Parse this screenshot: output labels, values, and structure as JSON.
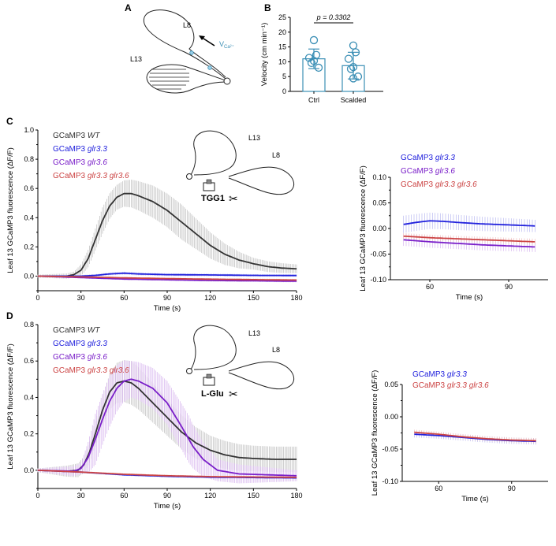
{
  "colors": {
    "wt": "#333333",
    "g33": "#2222dd",
    "g36": "#7a1fc9",
    "g3336": "#cc4444",
    "bar": "#3b8fb5",
    "wtShade": "#bdbdbd",
    "g33Shade": "#b9b9f0",
    "g36Shade": "#d6b3ee",
    "g3336Shade": "#efc0c0"
  },
  "panels": {
    "A": "A",
    "B": "B",
    "C": "C",
    "D": "D"
  },
  "schematic_A": {
    "leaf_top": "L8",
    "leaf_bottom": "L13",
    "velocity_label": "V",
    "velocity_sub": "Ca²⁺"
  },
  "chart_data": [
    {
      "id": "B",
      "type": "bar",
      "categories": [
        "Ctrl",
        "Scalded"
      ],
      "values": [
        11.0,
        8.7
      ],
      "sd": [
        3.3,
        4.5
      ],
      "points": [
        [
          17.3,
          12.3,
          11.3,
          10.3,
          9.6,
          8.0
        ],
        [
          15.5,
          13.2,
          11.0,
          8.2,
          7.6,
          5.0,
          4.4
        ]
      ],
      "ylabel": "Velocity (cm min⁻¹)",
      "ylim": [
        0,
        25
      ],
      "yticks": [
        0,
        5,
        10,
        15,
        20,
        25
      ],
      "pvalue": "p = 0.3302"
    },
    {
      "id": "C_main",
      "type": "line",
      "xlabel": "Time (s)",
      "ylabel": "Leaf 13 GCaMP3 fluorescence (ΔF/F)",
      "xlim": [
        0,
        180
      ],
      "xticks": [
        0,
        30,
        60,
        90,
        120,
        150,
        180
      ],
      "ylim": [
        -0.1,
        1.0
      ],
      "yticks": [
        "0.0",
        "0.2",
        "0.4",
        "0.6",
        "0.8",
        "1.0"
      ],
      "treatment": "TGG1",
      "schematic_leaves": [
        "L13",
        "L8"
      ],
      "legend": [
        "GCaMP3 WT",
        "GCaMP3 glr3.3",
        "GCaMP3 glr3.6",
        "GCaMP3 glr3.3 glr3.6"
      ],
      "series": [
        {
          "name": "GCaMP3 WT",
          "key": "wt",
          "points": [
            [
              0,
              0
            ],
            [
              10,
              0
            ],
            [
              20,
              0
            ],
            [
              25,
              0.01
            ],
            [
              30,
              0.04
            ],
            [
              35,
              0.12
            ],
            [
              40,
              0.25
            ],
            [
              45,
              0.38
            ],
            [
              50,
              0.48
            ],
            [
              55,
              0.54
            ],
            [
              60,
              0.565
            ],
            [
              65,
              0.565
            ],
            [
              70,
              0.55
            ],
            [
              80,
              0.51
            ],
            [
              90,
              0.45
            ],
            [
              100,
              0.37
            ],
            [
              110,
              0.29
            ],
            [
              120,
              0.21
            ],
            [
              130,
              0.15
            ],
            [
              140,
              0.11
            ],
            [
              150,
              0.085
            ],
            [
              160,
              0.065
            ],
            [
              170,
              0.055
            ],
            [
              180,
              0.05
            ]
          ],
          "err": [
            [
              0,
              0.01
            ],
            [
              25,
              0.02
            ],
            [
              35,
              0.06
            ],
            [
              45,
              0.09
            ],
            [
              55,
              0.085
            ],
            [
              60,
              0.09
            ],
            [
              80,
              0.11
            ],
            [
              100,
              0.12
            ],
            [
              120,
              0.09
            ],
            [
              150,
              0.04
            ],
            [
              180,
              0.03
            ]
          ]
        },
        {
          "name": "GCaMP3 glr3.3",
          "key": "g33",
          "points": [
            [
              0,
              0
            ],
            [
              30,
              0.0
            ],
            [
              40,
              0.005
            ],
            [
              50,
              0.015
            ],
            [
              60,
              0.02
            ],
            [
              70,
              0.015
            ],
            [
              90,
              0.01
            ],
            [
              120,
              0.008
            ],
            [
              150,
              0.005
            ],
            [
              180,
              0.004
            ]
          ],
          "err": [
            [
              0,
              0.005
            ],
            [
              60,
              0.01
            ],
            [
              180,
              0.008
            ]
          ]
        },
        {
          "name": "GCaMP3 glr3.6",
          "key": "g36",
          "points": [
            [
              0,
              0
            ],
            [
              30,
              -0.01
            ],
            [
              60,
              -0.02
            ],
            [
              90,
              -0.025
            ],
            [
              120,
              -0.03
            ],
            [
              150,
              -0.032
            ],
            [
              180,
              -0.035
            ]
          ],
          "err": [
            [
              0,
              0.005
            ],
            [
              180,
              0.008
            ]
          ]
        },
        {
          "name": "GCaMP3 glr3.3 glr3.6",
          "key": "g3336",
          "points": [
            [
              0,
              0
            ],
            [
              30,
              -0.005
            ],
            [
              60,
              -0.012
            ],
            [
              90,
              -0.017
            ],
            [
              120,
              -0.021
            ],
            [
              150,
              -0.024
            ],
            [
              180,
              -0.027
            ]
          ],
          "err": [
            [
              0,
              0.005
            ],
            [
              180,
              0.008
            ]
          ]
        }
      ]
    },
    {
      "id": "C_inset",
      "type": "line",
      "xlabel": "Time (s)",
      "ylabel": "Leaf 13 GCaMP3 fluorescence (ΔF/F)",
      "xlim": [
        45,
        105
      ],
      "xticks": [
        60,
        90
      ],
      "ylim": [
        -0.1,
        0.1
      ],
      "yticks": [
        "0.10",
        "0.05",
        "0.00",
        "-0.05",
        "-0.10"
      ],
      "legend": [
        "GCaMP3 glr3.3",
        "GCaMP3 glr3.6",
        "GCaMP3 glr3.3 glr3.6"
      ],
      "series": [
        {
          "name": "GCaMP3 glr3.3",
          "key": "g33",
          "points": [
            [
              50,
              0.008
            ],
            [
              55,
              0.012
            ],
            [
              60,
              0.015
            ],
            [
              65,
              0.014
            ],
            [
              70,
              0.012
            ],
            [
              80,
              0.009
            ],
            [
              90,
              0.007
            ],
            [
              100,
              0.005
            ]
          ],
          "err": [
            [
              50,
              0.017
            ],
            [
              100,
              0.012
            ]
          ]
        },
        {
          "name": "GCaMP3 glr3.6",
          "key": "g36",
          "points": [
            [
              50,
              -0.022
            ],
            [
              60,
              -0.026
            ],
            [
              70,
              -0.029
            ],
            [
              80,
              -0.032
            ],
            [
              90,
              -0.034
            ],
            [
              100,
              -0.036
            ]
          ],
          "err": [
            [
              50,
              0.012
            ],
            [
              100,
              0.01
            ]
          ]
        },
        {
          "name": "GCaMP3 glr3.3 glr3.6",
          "key": "g3336",
          "points": [
            [
              50,
              -0.015
            ],
            [
              60,
              -0.018
            ],
            [
              70,
              -0.02
            ],
            [
              80,
              -0.022
            ],
            [
              90,
              -0.024
            ],
            [
              100,
              -0.026
            ]
          ],
          "err": [
            [
              50,
              0.006
            ],
            [
              100,
              0.006
            ]
          ]
        }
      ]
    },
    {
      "id": "D_main",
      "type": "line",
      "xlabel": "Time (s)",
      "ylabel": "Leaf 13 GCaMP3 fluorescence (ΔF/F)",
      "xlim": [
        0,
        180
      ],
      "xticks": [
        0,
        30,
        60,
        90,
        120,
        150,
        180
      ],
      "ylim": [
        -0.1,
        0.8
      ],
      "yticks": [
        "0.0",
        "0.2",
        "0.4",
        "0.6",
        "0.8"
      ],
      "treatment": "L-Glu",
      "schematic_leaves": [
        "L13",
        "L8"
      ],
      "legend": [
        "GCaMP3 WT",
        "GCaMP3 glr3.3",
        "GCaMP3 glr3.6",
        "GCaMP3 glr3.3 glr3.6"
      ],
      "series": [
        {
          "name": "GCaMP3 WT",
          "key": "wt",
          "points": [
            [
              0,
              0
            ],
            [
              20,
              -0.005
            ],
            [
              28,
              0.0
            ],
            [
              32,
              0.03
            ],
            [
              36,
              0.1
            ],
            [
              40,
              0.2
            ],
            [
              45,
              0.33
            ],
            [
              50,
              0.43
            ],
            [
              55,
              0.48
            ],
            [
              60,
              0.49
            ],
            [
              65,
              0.48
            ],
            [
              70,
              0.45
            ],
            [
              80,
              0.37
            ],
            [
              90,
              0.29
            ],
            [
              100,
              0.21
            ],
            [
              110,
              0.15
            ],
            [
              120,
              0.11
            ],
            [
              130,
              0.085
            ],
            [
              140,
              0.07
            ],
            [
              150,
              0.065
            ],
            [
              165,
              0.06
            ],
            [
              180,
              0.06
            ]
          ],
          "err": [
            [
              0,
              0.01
            ],
            [
              30,
              0.04
            ],
            [
              40,
              0.07
            ],
            [
              55,
              0.11
            ],
            [
              65,
              0.12
            ],
            [
              90,
              0.1
            ],
            [
              120,
              0.08
            ],
            [
              150,
              0.07
            ],
            [
              180,
              0.07
            ]
          ]
        },
        {
          "name": "GCaMP3 glr3.3",
          "key": "g33",
          "points": [
            [
              0,
              0
            ],
            [
              30,
              -0.01
            ],
            [
              60,
              -0.025
            ],
            [
              90,
              -0.033
            ],
            [
              120,
              -0.038
            ],
            [
              150,
              -0.04
            ],
            [
              180,
              -0.042
            ]
          ],
          "err": [
            [
              0,
              0.005
            ],
            [
              180,
              0.006
            ]
          ]
        },
        {
          "name": "GCaMP3 glr3.6",
          "key": "g36",
          "points": [
            [
              0,
              0
            ],
            [
              25,
              -0.005
            ],
            [
              30,
              0.01
            ],
            [
              35,
              0.07
            ],
            [
              40,
              0.17
            ],
            [
              45,
              0.28
            ],
            [
              50,
              0.38
            ],
            [
              55,
              0.45
            ],
            [
              60,
              0.49
            ],
            [
              65,
              0.5
            ],
            [
              70,
              0.49
            ],
            [
              80,
              0.45
            ],
            [
              90,
              0.37
            ],
            [
              100,
              0.24
            ],
            [
              108,
              0.13
            ],
            [
              115,
              0.06
            ],
            [
              125,
              0.0
            ],
            [
              140,
              -0.02
            ],
            [
              160,
              -0.025
            ],
            [
              180,
              -0.03
            ]
          ],
          "err": [
            [
              0,
              0.01
            ],
            [
              30,
              0.03
            ],
            [
              40,
              0.14
            ],
            [
              50,
              0.14
            ],
            [
              65,
              0.1
            ],
            [
              90,
              0.12
            ],
            [
              105,
              0.13
            ],
            [
              125,
              0.06
            ],
            [
              180,
              0.03
            ]
          ]
        },
        {
          "name": "GCaMP3 glr3.3 glr3.6",
          "key": "g3336",
          "points": [
            [
              0,
              0
            ],
            [
              30,
              -0.01
            ],
            [
              60,
              -0.022
            ],
            [
              90,
              -0.03
            ],
            [
              120,
              -0.035
            ],
            [
              150,
              -0.037
            ],
            [
              180,
              -0.039
            ]
          ],
          "err": [
            [
              0,
              0.005
            ],
            [
              180,
              0.006
            ]
          ]
        }
      ]
    },
    {
      "id": "D_inset",
      "type": "line",
      "xlabel": "Time (s)",
      "ylabel": "Leaf 13 GCaMP3 fluorescence (ΔF/F)",
      "xlim": [
        45,
        105
      ],
      "xticks": [
        60,
        90
      ],
      "ylim": [
        -0.1,
        0.05
      ],
      "yticks": [
        "0.05",
        "0.00",
        "-0.05",
        "-0.10"
      ],
      "legend": [
        "GCaMP3 glr3.3",
        "GCaMP3 glr3.3 glr3.6"
      ],
      "series": [
        {
          "name": "GCaMP3 glr3.3",
          "key": "g33",
          "points": [
            [
              50,
              -0.027
            ],
            [
              60,
              -0.029
            ],
            [
              70,
              -0.032
            ],
            [
              80,
              -0.035
            ],
            [
              90,
              -0.037
            ],
            [
              100,
              -0.038
            ]
          ],
          "err": [
            [
              50,
              0.005
            ],
            [
              100,
              0.005
            ]
          ]
        },
        {
          "name": "GCaMP3 glr3.3 glr3.6",
          "key": "g3336",
          "points": [
            [
              50,
              -0.024
            ],
            [
              60,
              -0.027
            ],
            [
              70,
              -0.031
            ],
            [
              80,
              -0.034
            ],
            [
              90,
              -0.036
            ],
            [
              100,
              -0.037
            ]
          ],
          "err": [
            [
              50,
              0.004
            ],
            [
              100,
              0.004
            ]
          ]
        }
      ]
    }
  ]
}
